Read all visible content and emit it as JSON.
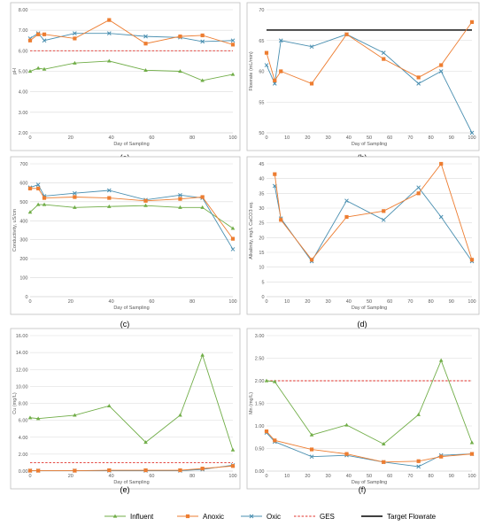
{
  "colors": {
    "influent": "#70AD47",
    "anoxic": "#ED7D31",
    "oxic": "#4A8FB0",
    "ges": "#E0302A",
    "target": "#000000",
    "grid": "#D9D9D9",
    "frame": "#BFBFBF"
  },
  "legend": [
    {
      "key": "influent",
      "label": "Influent",
      "marker": "triangle",
      "line": "solid"
    },
    {
      "key": "anoxic",
      "label": "Anoxic",
      "marker": "square",
      "line": "solid"
    },
    {
      "key": "oxic",
      "label": "Oxic",
      "marker": "x",
      "line": "solid"
    },
    {
      "key": "ges",
      "label": "GES",
      "marker": "none",
      "line": "dashed"
    },
    {
      "key": "target",
      "label": "Target Flowrate",
      "marker": "none",
      "line": "solid"
    }
  ],
  "chart_data": [
    {
      "id": "a",
      "panel_label": "(a)",
      "type": "line",
      "ylabel": "pH",
      "xlabel": "Day of Sampling",
      "ylim": [
        2.0,
        8.0
      ],
      "yticks": [
        2.0,
        3.0,
        4.0,
        5.0,
        6.0,
        7.0,
        8.0
      ],
      "ytick_decimals": 2,
      "xlim": [
        0,
        100
      ],
      "xticks": [
        0,
        20,
        40,
        60,
        80,
        100
      ],
      "series": [
        {
          "key": "influent",
          "name": "Influent",
          "x": [
            0,
            4,
            7,
            22,
            39,
            57,
            74,
            85,
            100
          ],
          "y": [
            5.0,
            5.15,
            5.1,
            5.4,
            5.5,
            5.05,
            5.0,
            4.55,
            4.85
          ]
        },
        {
          "key": "anoxic",
          "name": "Anoxic",
          "x": [
            0,
            4,
            7,
            22,
            39,
            57,
            74,
            85,
            100
          ],
          "y": [
            6.5,
            6.8,
            6.8,
            6.6,
            7.5,
            6.35,
            6.7,
            6.75,
            6.3
          ]
        },
        {
          "key": "oxic",
          "name": "Oxic",
          "x": [
            0,
            4,
            7,
            22,
            39,
            57,
            74,
            85,
            100
          ],
          "y": [
            6.6,
            6.85,
            6.5,
            6.85,
            6.85,
            6.7,
            6.65,
            6.45,
            6.5
          ]
        }
      ],
      "hlines": [
        {
          "key": "ges",
          "name": "GES",
          "y": 6.0
        }
      ]
    },
    {
      "id": "b",
      "panel_label": "(b)",
      "type": "line",
      "ylabel": "Flowrate (mL/min)",
      "xlabel": "Day of Sampling",
      "ylim": [
        50,
        70
      ],
      "yticks": [
        50,
        55,
        60,
        65,
        70
      ],
      "ytick_decimals": 0,
      "xlim": [
        0,
        100
      ],
      "xticks": [
        0,
        10,
        20,
        30,
        40,
        50,
        60,
        70,
        80,
        90,
        100
      ],
      "series": [
        {
          "key": "anoxic",
          "name": "Anoxic",
          "x": [
            0,
            4,
            7,
            22,
            39,
            57,
            74,
            85,
            100
          ],
          "y": [
            63,
            58.5,
            60,
            58,
            66,
            62,
            59,
            61,
            68
          ]
        },
        {
          "key": "oxic",
          "name": "Oxic",
          "x": [
            0,
            4,
            7,
            22,
            39,
            57,
            74,
            85,
            100
          ],
          "y": [
            61,
            58,
            65,
            64,
            66,
            63,
            58,
            60,
            50
          ]
        }
      ],
      "hlines": [
        {
          "key": "target",
          "name": "Target Flowrate",
          "y": 66.7
        }
      ]
    },
    {
      "id": "c",
      "panel_label": "(c)",
      "type": "line",
      "ylabel": "Conductivity, uS/cm",
      "xlabel": "Day of Sampling",
      "ylim": [
        0,
        700
      ],
      "yticks": [
        0,
        100,
        200,
        300,
        400,
        500,
        600,
        700
      ],
      "ytick_decimals": 0,
      "xlim": [
        0,
        100
      ],
      "xticks": [
        0,
        20,
        40,
        60,
        80,
        100
      ],
      "series": [
        {
          "key": "influent",
          "name": "Influent",
          "x": [
            0,
            4,
            7,
            22,
            39,
            57,
            74,
            85,
            100
          ],
          "y": [
            445,
            485,
            485,
            470,
            475,
            480,
            470,
            470,
            360
          ]
        },
        {
          "key": "anoxic",
          "name": "Anoxic",
          "x": [
            0,
            4,
            7,
            22,
            39,
            57,
            74,
            85,
            100
          ],
          "y": [
            570,
            570,
            520,
            525,
            520,
            505,
            515,
            525,
            305
          ]
        },
        {
          "key": "oxic",
          "name": "Oxic",
          "x": [
            0,
            4,
            7,
            22,
            39,
            57,
            74,
            85,
            100
          ],
          "y": [
            575,
            590,
            530,
            545,
            560,
            510,
            535,
            520,
            250
          ]
        }
      ],
      "hlines": []
    },
    {
      "id": "d",
      "panel_label": "(d)",
      "type": "line",
      "ylabel": "Alkalinity, mg/L CaCO3 eq.",
      "xlabel": "Day of Sampling",
      "ylim": [
        0,
        45
      ],
      "yticks": [
        0,
        5,
        10,
        15,
        20,
        25,
        30,
        35,
        40,
        45
      ],
      "ytick_decimals": 0,
      "xlim": [
        0,
        100
      ],
      "xticks": [
        0,
        10,
        20,
        30,
        40,
        50,
        60,
        70,
        80,
        90,
        100
      ],
      "series": [
        {
          "key": "anoxic",
          "name": "Anoxic",
          "x": [
            4,
            7,
            22,
            39,
            57,
            74,
            85,
            100
          ],
          "y": [
            41.5,
            26,
            12.5,
            27,
            29,
            35,
            45,
            12.5
          ]
        },
        {
          "key": "oxic",
          "name": "Oxic",
          "x": [
            4,
            7,
            22,
            39,
            57,
            74,
            85,
            100
          ],
          "y": [
            37.5,
            26.5,
            12,
            32.5,
            26,
            37,
            27,
            12
          ]
        }
      ],
      "hlines": []
    },
    {
      "id": "e",
      "panel_label": "(e)",
      "type": "line",
      "ylabel": "Cu (mg/L)",
      "xlabel": "Day of Sampling",
      "ylim": [
        0,
        16
      ],
      "yticks": [
        0,
        2,
        4,
        6,
        8,
        10,
        12,
        14,
        16
      ],
      "ytick_decimals": 2,
      "xlim": [
        0,
        100
      ],
      "xticks": [
        0,
        20,
        40,
        60,
        80,
        100
      ],
      "series": [
        {
          "key": "influent",
          "name": "Influent",
          "x": [
            0,
            4,
            22,
            39,
            57,
            74,
            85,
            100
          ],
          "y": [
            6.3,
            6.2,
            6.6,
            7.7,
            3.4,
            6.6,
            13.7,
            2.5
          ]
        },
        {
          "key": "anoxic",
          "name": "Anoxic",
          "x": [
            0,
            4,
            22,
            39,
            57,
            74,
            85,
            100
          ],
          "y": [
            0.05,
            0.05,
            0.05,
            0.1,
            0.1,
            0.1,
            0.3,
            0.6
          ]
        },
        {
          "key": "oxic",
          "name": "Oxic",
          "x": [
            0,
            4,
            22,
            39,
            57,
            74,
            85,
            100
          ],
          "y": [
            0.05,
            0.05,
            0.05,
            0.05,
            0.05,
            0.05,
            0.2,
            0.7
          ]
        }
      ],
      "hlines": [
        {
          "key": "ges",
          "name": "GES",
          "y": 1.0
        }
      ]
    },
    {
      "id": "f",
      "panel_label": "(f)",
      "type": "line",
      "ylabel": "Mn (mg/L)",
      "xlabel": "Day of Sampling",
      "ylim": [
        0,
        3
      ],
      "yticks": [
        0,
        0.5,
        1.0,
        1.5,
        2.0,
        2.5,
        3.0
      ],
      "ytick_decimals": 2,
      "xlim": [
        0,
        100
      ],
      "xticks": [
        0,
        10,
        20,
        30,
        40,
        50,
        60,
        70,
        80,
        90,
        100
      ],
      "series": [
        {
          "key": "influent",
          "name": "Influent",
          "x": [
            0,
            4,
            22,
            39,
            57,
            74,
            85,
            100
          ],
          "y": [
            2.0,
            1.98,
            0.8,
            1.02,
            0.6,
            1.25,
            2.45,
            0.63
          ]
        },
        {
          "key": "anoxic",
          "name": "Anoxic",
          "x": [
            0,
            4,
            22,
            39,
            57,
            74,
            85,
            100
          ],
          "y": [
            0.88,
            0.68,
            0.48,
            0.38,
            0.2,
            0.22,
            0.32,
            0.38
          ]
        },
        {
          "key": "oxic",
          "name": "Oxic",
          "x": [
            0,
            4,
            22,
            39,
            57,
            74,
            85,
            100
          ],
          "y": [
            0.85,
            0.65,
            0.32,
            0.35,
            0.2,
            0.1,
            0.35,
            0.38
          ]
        }
      ],
      "hlines": [
        {
          "key": "ges",
          "name": "GES",
          "y": 2.0
        }
      ]
    }
  ]
}
